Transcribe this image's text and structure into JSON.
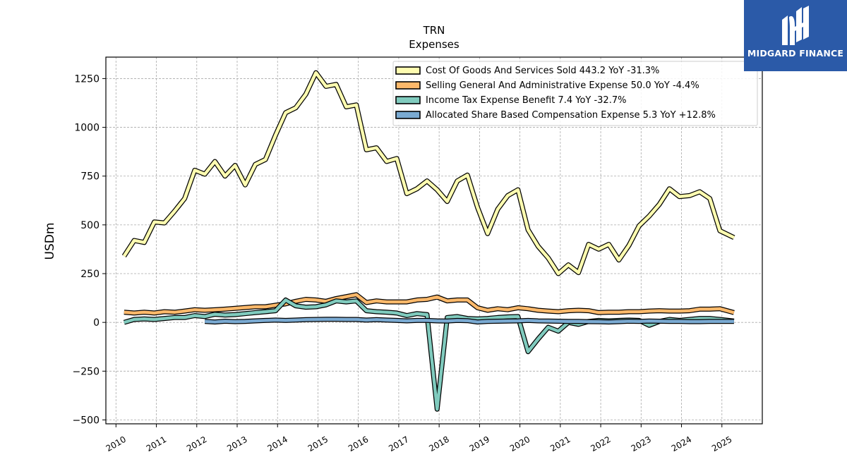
{
  "branding": {
    "logo_text": "MIDGARD FINANCE",
    "logo_color": "#2b5aa8"
  },
  "chart_data": {
    "type": "line",
    "title": "TRN",
    "subtitle": "Expenses",
    "ylabel": "USDm",
    "xlabel": "",
    "ylim": [
      -520,
      1360
    ],
    "xlim": [
      2009.75,
      2026.0
    ],
    "yticks": [
      -500,
      -250,
      0,
      250,
      500,
      750,
      1000,
      1250
    ],
    "xticks": [
      "2010",
      "2011",
      "2012",
      "2013",
      "2014",
      "2015",
      "2016",
      "2017",
      "2018",
      "2019",
      "2020",
      "2021",
      "2022",
      "2023",
      "2024",
      "2025"
    ],
    "grid": true,
    "legend_position": "top-right",
    "series": [
      {
        "name": "Cost Of Goods And Services Sold  443.2 YoY -31.3%",
        "color": "#fefcb0",
        "points": [
          [
            2010.2,
            340
          ],
          [
            2010.45,
            420
          ],
          [
            2010.7,
            410
          ],
          [
            2010.95,
            515
          ],
          [
            2011.2,
            510
          ],
          [
            2011.45,
            570
          ],
          [
            2011.7,
            635
          ],
          [
            2011.95,
            780
          ],
          [
            2012.2,
            760
          ],
          [
            2012.45,
            825
          ],
          [
            2012.7,
            750
          ],
          [
            2012.95,
            805
          ],
          [
            2013.2,
            705
          ],
          [
            2013.45,
            810
          ],
          [
            2013.7,
            835
          ],
          [
            2013.95,
            960
          ],
          [
            2014.2,
            1075
          ],
          [
            2014.45,
            1100
          ],
          [
            2014.7,
            1170
          ],
          [
            2014.95,
            1280
          ],
          [
            2015.2,
            1210
          ],
          [
            2015.45,
            1220
          ],
          [
            2015.7,
            1105
          ],
          [
            2015.95,
            1115
          ],
          [
            2016.2,
            885
          ],
          [
            2016.45,
            895
          ],
          [
            2016.7,
            825
          ],
          [
            2016.95,
            840
          ],
          [
            2017.2,
            660
          ],
          [
            2017.45,
            685
          ],
          [
            2017.7,
            725
          ],
          [
            2017.95,
            680
          ],
          [
            2018.2,
            620
          ],
          [
            2018.45,
            725
          ],
          [
            2018.7,
            755
          ],
          [
            2018.95,
            590
          ],
          [
            2019.2,
            455
          ],
          [
            2019.45,
            580
          ],
          [
            2019.7,
            650
          ],
          [
            2019.95,
            680
          ],
          [
            2020.2,
            475
          ],
          [
            2020.45,
            390
          ],
          [
            2020.7,
            330
          ],
          [
            2020.95,
            250
          ],
          [
            2021.2,
            295
          ],
          [
            2021.45,
            255
          ],
          [
            2021.7,
            400
          ],
          [
            2021.95,
            375
          ],
          [
            2022.2,
            400
          ],
          [
            2022.45,
            320
          ],
          [
            2022.7,
            395
          ],
          [
            2022.95,
            495
          ],
          [
            2023.2,
            545
          ],
          [
            2023.45,
            605
          ],
          [
            2023.7,
            685
          ],
          [
            2023.95,
            645
          ],
          [
            2024.2,
            650
          ],
          [
            2024.45,
            670
          ],
          [
            2024.7,
            635
          ],
          [
            2024.95,
            470
          ],
          [
            2025.3,
            435
          ]
        ]
      },
      {
        "name": "Selling General And Administrative Expense  50.0 YoY -4.4%",
        "color": "#fdb96b",
        "points": [
          [
            2010.2,
            52
          ],
          [
            2010.45,
            48
          ],
          [
            2010.7,
            52
          ],
          [
            2010.95,
            48
          ],
          [
            2011.2,
            55
          ],
          [
            2011.45,
            52
          ],
          [
            2011.7,
            58
          ],
          [
            2011.95,
            65
          ],
          [
            2012.2,
            62
          ],
          [
            2012.45,
            65
          ],
          [
            2012.7,
            68
          ],
          [
            2012.95,
            72
          ],
          [
            2013.2,
            76
          ],
          [
            2013.45,
            80
          ],
          [
            2013.7,
            80
          ],
          [
            2013.95,
            88
          ],
          [
            2014.2,
            95
          ],
          [
            2014.45,
            108
          ],
          [
            2014.7,
            118
          ],
          [
            2014.95,
            115
          ],
          [
            2015.2,
            108
          ],
          [
            2015.45,
            122
          ],
          [
            2015.7,
            132
          ],
          [
            2015.95,
            142
          ],
          [
            2016.2,
            102
          ],
          [
            2016.45,
            110
          ],
          [
            2016.7,
            105
          ],
          [
            2016.95,
            105
          ],
          [
            2017.2,
            105
          ],
          [
            2017.45,
            115
          ],
          [
            2017.7,
            118
          ],
          [
            2017.95,
            130
          ],
          [
            2018.2,
            110
          ],
          [
            2018.45,
            115
          ],
          [
            2018.7,
            115
          ],
          [
            2018.95,
            75
          ],
          [
            2019.2,
            62
          ],
          [
            2019.45,
            70
          ],
          [
            2019.7,
            65
          ],
          [
            2019.95,
            75
          ],
          [
            2020.2,
            70
          ],
          [
            2020.45,
            62
          ],
          [
            2020.7,
            58
          ],
          [
            2020.95,
            55
          ],
          [
            2021.2,
            60
          ],
          [
            2021.45,
            62
          ],
          [
            2021.7,
            60
          ],
          [
            2021.95,
            50
          ],
          [
            2022.2,
            52
          ],
          [
            2022.45,
            52
          ],
          [
            2022.7,
            55
          ],
          [
            2022.95,
            55
          ],
          [
            2023.2,
            58
          ],
          [
            2023.45,
            60
          ],
          [
            2023.7,
            58
          ],
          [
            2023.95,
            58
          ],
          [
            2024.2,
            60
          ],
          [
            2024.45,
            68
          ],
          [
            2024.7,
            68
          ],
          [
            2024.95,
            70
          ],
          [
            2025.3,
            50
          ]
        ]
      },
      {
        "name": "Income Tax Expense Benefit  7.4 YoY -32.7%",
        "color": "#80cbbe",
        "points": [
          [
            2010.2,
            0
          ],
          [
            2010.45,
            15
          ],
          [
            2010.7,
            18
          ],
          [
            2010.95,
            15
          ],
          [
            2011.2,
            20
          ],
          [
            2011.45,
            25
          ],
          [
            2011.7,
            25
          ],
          [
            2011.95,
            35
          ],
          [
            2012.2,
            30
          ],
          [
            2012.45,
            42
          ],
          [
            2012.7,
            38
          ],
          [
            2012.95,
            40
          ],
          [
            2013.2,
            45
          ],
          [
            2013.45,
            50
          ],
          [
            2013.7,
            55
          ],
          [
            2013.95,
            60
          ],
          [
            2014.2,
            115
          ],
          [
            2014.45,
            85
          ],
          [
            2014.7,
            78
          ],
          [
            2014.95,
            80
          ],
          [
            2015.2,
            90
          ],
          [
            2015.45,
            110
          ],
          [
            2015.7,
            105
          ],
          [
            2015.95,
            110
          ],
          [
            2016.2,
            60
          ],
          [
            2016.45,
            55
          ],
          [
            2016.7,
            52
          ],
          [
            2016.95,
            48
          ],
          [
            2017.2,
            35
          ],
          [
            2017.45,
            45
          ],
          [
            2017.7,
            40
          ],
          [
            2017.95,
            -445
          ],
          [
            2018.2,
            25
          ],
          [
            2018.45,
            30
          ],
          [
            2018.7,
            20
          ],
          [
            2018.95,
            18
          ],
          [
            2019.2,
            20
          ],
          [
            2019.45,
            25
          ],
          [
            2019.7,
            28
          ],
          [
            2019.95,
            30
          ],
          [
            2020.2,
            -150
          ],
          [
            2020.45,
            -85
          ],
          [
            2020.7,
            -25
          ],
          [
            2020.95,
            -45
          ],
          [
            2021.2,
            0
          ],
          [
            2021.45,
            -10
          ],
          [
            2021.7,
            5
          ],
          [
            2021.95,
            10
          ],
          [
            2022.2,
            8
          ],
          [
            2022.45,
            10
          ],
          [
            2022.7,
            12
          ],
          [
            2022.95,
            10
          ],
          [
            2023.2,
            -15
          ],
          [
            2023.45,
            5
          ],
          [
            2023.7,
            15
          ],
          [
            2023.95,
            10
          ],
          [
            2024.2,
            15
          ],
          [
            2024.45,
            20
          ],
          [
            2024.7,
            20
          ],
          [
            2024.95,
            15
          ],
          [
            2025.3,
            7
          ]
        ]
      },
      {
        "name": "Allocated Share Based Compensation Expense  5.3 YoY +12.8%",
        "color": "#7aaad2",
        "points": [
          [
            2012.2,
            5
          ],
          [
            2012.45,
            2
          ],
          [
            2012.7,
            6
          ],
          [
            2012.95,
            4
          ],
          [
            2013.2,
            5
          ],
          [
            2013.45,
            8
          ],
          [
            2013.7,
            10
          ],
          [
            2013.95,
            12
          ],
          [
            2014.2,
            10
          ],
          [
            2014.45,
            12
          ],
          [
            2014.7,
            14
          ],
          [
            2014.95,
            15
          ],
          [
            2015.2,
            16
          ],
          [
            2015.45,
            16
          ],
          [
            2015.7,
            15
          ],
          [
            2015.95,
            15
          ],
          [
            2016.2,
            12
          ],
          [
            2016.45,
            14
          ],
          [
            2016.7,
            12
          ],
          [
            2016.95,
            10
          ],
          [
            2017.2,
            8
          ],
          [
            2017.45,
            10
          ],
          [
            2017.7,
            10
          ],
          [
            2017.95,
            8
          ],
          [
            2018.2,
            7
          ],
          [
            2018.45,
            10
          ],
          [
            2018.7,
            9
          ],
          [
            2018.95,
            2
          ],
          [
            2019.2,
            5
          ],
          [
            2019.45,
            6
          ],
          [
            2019.7,
            7
          ],
          [
            2019.95,
            8
          ],
          [
            2020.2,
            10
          ],
          [
            2020.45,
            8
          ],
          [
            2020.7,
            7
          ],
          [
            2020.95,
            6
          ],
          [
            2021.2,
            5
          ],
          [
            2021.45,
            5
          ],
          [
            2021.7,
            4
          ],
          [
            2021.95,
            3
          ],
          [
            2022.2,
            2
          ],
          [
            2022.45,
            4
          ],
          [
            2022.7,
            6
          ],
          [
            2022.95,
            5
          ],
          [
            2023.2,
            7
          ],
          [
            2023.45,
            6
          ],
          [
            2023.7,
            5
          ],
          [
            2023.95,
            5
          ],
          [
            2024.2,
            4
          ],
          [
            2024.45,
            4
          ],
          [
            2024.7,
            5
          ],
          [
            2024.95,
            5
          ],
          [
            2025.3,
            5
          ]
        ]
      }
    ]
  }
}
